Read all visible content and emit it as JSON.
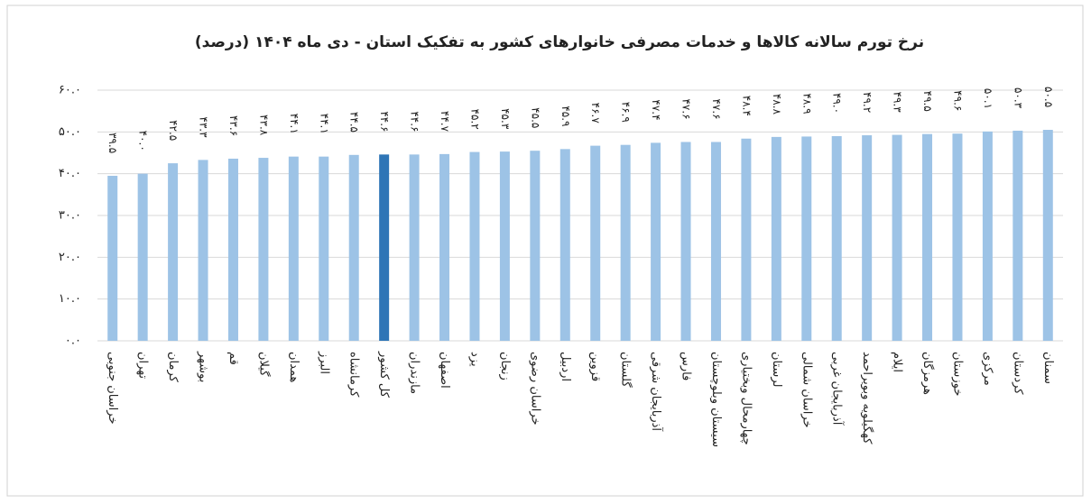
{
  "chart_data": {
    "type": "bar",
    "title": "نرخ تورم سالانه کالاها و خدمات مصرفی خانوارهای کشور به تفکیک استان - دی ماه ۱۴۰۴ (درصد)",
    "categories": [
      "خراسان جنوبی",
      "تهران",
      "کرمان",
      "بوشهر",
      "قم",
      "گیلان",
      "همدان",
      "البرز",
      "کرمانشاه",
      "کل کشور",
      "مازندران",
      "اصفهان",
      "یزد",
      "زنجان",
      "خراسان رضوی",
      "اردبیل",
      "قزوین",
      "گلستان",
      "آذربایجان شرقی",
      "فارس",
      "سیستان وبلوچستان",
      "چهارمحال وبختیاری",
      "لرستان",
      "خراسان شمالی",
      "آذربایجان غربی",
      "کهگیلویه وبویراحمد",
      "ایلام",
      "هرمزگان",
      "خوزستان",
      "مرکزی",
      "کردستان",
      "سمنان"
    ],
    "values": [
      39.5,
      40.0,
      42.5,
      43.3,
      43.6,
      43.8,
      44.1,
      44.1,
      44.5,
      44.6,
      44.6,
      44.7,
      45.2,
      45.3,
      45.5,
      45.9,
      46.7,
      46.9,
      47.4,
      47.6,
      47.6,
      48.4,
      48.8,
      48.9,
      49.0,
      49.2,
      49.3,
      49.5,
      49.6,
      50.1,
      50.3,
      50.5
    ],
    "value_labels": [
      "۳۹.۵",
      "۴۰.۰",
      "۴۲.۵",
      "۴۳.۳",
      "۴۳.۶",
      "۴۳.۸",
      "۴۴.۱",
      "۴۴.۱",
      "۴۴.۵",
      "۴۴.۶",
      "۴۴.۶",
      "۴۴.۷",
      "۴۵.۲",
      "۴۵.۳",
      "۴۵.۵",
      "۴۵.۹",
      "۴۶.۷",
      "۴۶.۹",
      "۴۷.۴",
      "۴۷.۶",
      "۴۷.۶",
      "۴۸.۴",
      "۴۸.۸",
      "۴۸.۹",
      "۴۹.۰",
      "۴۹.۲",
      "۴۹.۳",
      "۴۹.۵",
      "۴۹.۶",
      "۵۰.۱",
      "۵۰.۳",
      "۵۰.۵"
    ],
    "colors": [
      "#9dc3e6",
      "#9dc3e6",
      "#9dc3e6",
      "#9dc3e6",
      "#9dc3e6",
      "#9dc3e6",
      "#9dc3e6",
      "#9dc3e6",
      "#9dc3e6",
      "#2e75b6",
      "#9dc3e6",
      "#9dc3e6",
      "#9dc3e6",
      "#9dc3e6",
      "#9dc3e6",
      "#9dc3e6",
      "#9dc3e6",
      "#9dc3e6",
      "#9dc3e6",
      "#9dc3e6",
      "#9dc3e6",
      "#9dc3e6",
      "#9dc3e6",
      "#9dc3e6",
      "#9dc3e6",
      "#9dc3e6",
      "#9dc3e6",
      "#9dc3e6",
      "#9dc3e6",
      "#9dc3e6",
      "#9dc3e6",
      "#9dc3e6"
    ],
    "ylim": [
      0,
      60
    ],
    "yticks": [
      {
        "value": 0,
        "label": "۰.۰"
      },
      {
        "value": 10,
        "label": "۱۰.۰"
      },
      {
        "value": 20,
        "label": "۲۰.۰"
      },
      {
        "value": 30,
        "label": "۳۰.۰"
      },
      {
        "value": 40,
        "label": "۴۰.۰"
      },
      {
        "value": 50,
        "label": "۵۰.۰"
      },
      {
        "value": 60,
        "label": "۶۰.۰"
      }
    ],
    "grid": true
  }
}
